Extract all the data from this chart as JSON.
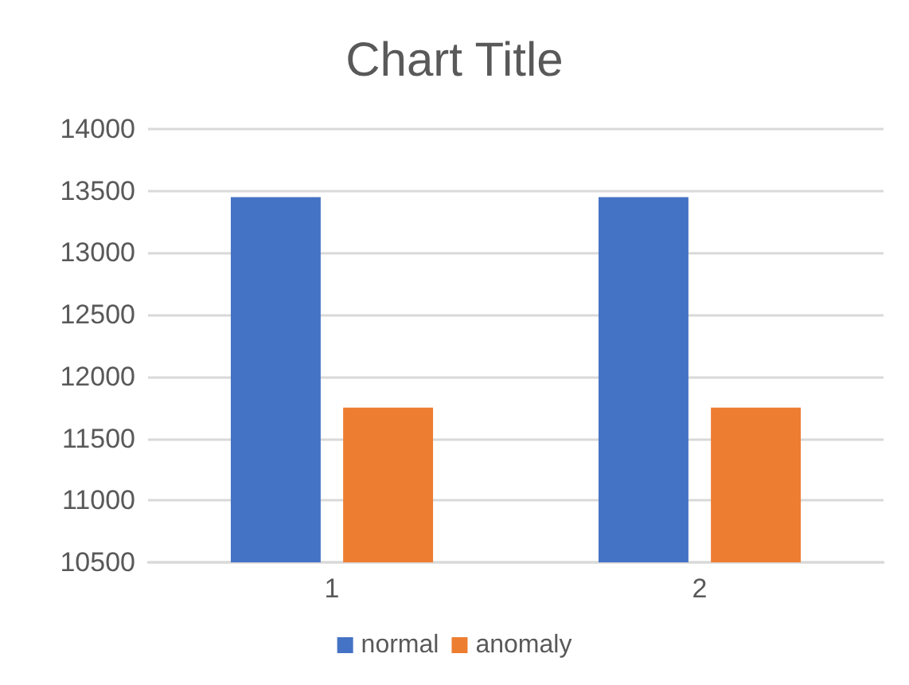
{
  "chart_data": {
    "type": "bar",
    "title": "Chart Title",
    "categories": [
      "1",
      "2"
    ],
    "series": [
      {
        "name": "normal",
        "color": "#4472c4",
        "values": [
          13450,
          13450
        ]
      },
      {
        "name": "anomaly",
        "color": "#ed7d31",
        "values": [
          11750,
          11750
        ]
      }
    ],
    "ylim": [
      10500,
      14000
    ],
    "yticks": [
      10500,
      11000,
      11500,
      12000,
      12500,
      13000,
      13500,
      14000
    ],
    "grid": "y",
    "legend": "bottom"
  }
}
